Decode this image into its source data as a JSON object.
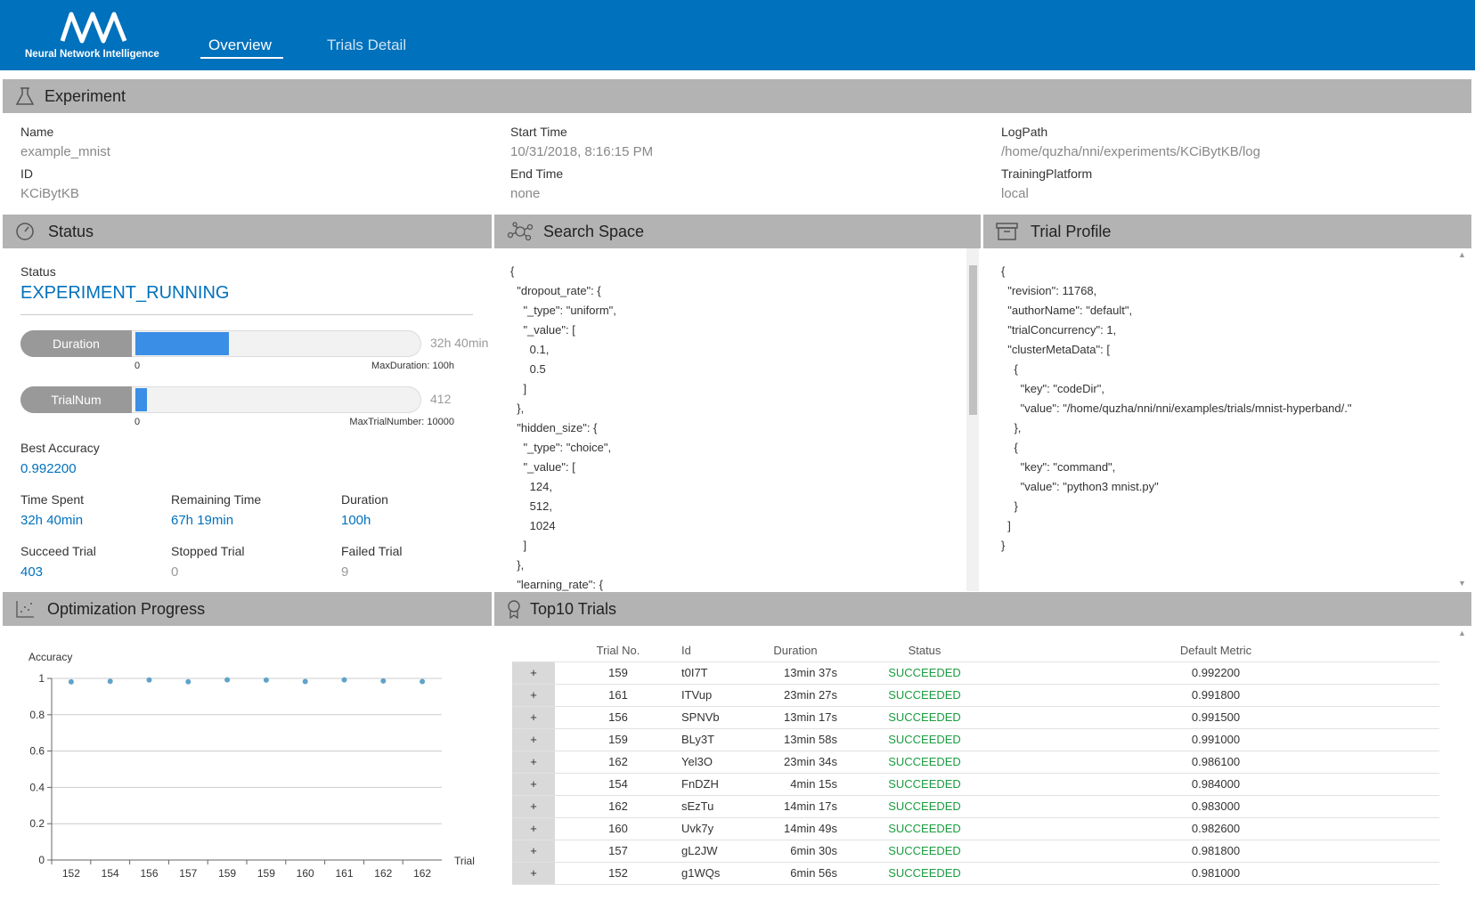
{
  "header": {
    "logo_text": "Neural Network Intelligence",
    "nav": [
      "Overview",
      "Trials Detail"
    ]
  },
  "experiment": {
    "title": "Experiment",
    "columns": [
      [
        {
          "label": "Name",
          "value": "example_mnist"
        },
        {
          "label": "ID",
          "value": "KCiBytKB"
        }
      ],
      [
        {
          "label": "Start Time",
          "value": "10/31/2018, 8:16:15 PM"
        },
        {
          "label": "End Time",
          "value": "none"
        }
      ],
      [
        {
          "label": "LogPath",
          "value": "/home/quzha/nni/experiments/KCiBytKB/log"
        },
        {
          "label": "TrainingPlatform",
          "value": "local"
        }
      ]
    ]
  },
  "status": {
    "title": "Status",
    "status_label": "Status",
    "status_value": "EXPERIMENT_RUNNING",
    "progress": [
      {
        "label": "Duration",
        "value": 32.67,
        "value_label": "32h 40min",
        "min": 0,
        "max": 100,
        "max_label": "MaxDuration: 100h"
      },
      {
        "label": "TrialNum",
        "value": 412,
        "min": 0,
        "max": 10000,
        "max_label": "MaxTrialNumber: 10000"
      }
    ],
    "best_accuracy": {
      "label": "Best Accuracy",
      "value": "0.992200"
    },
    "stats": [
      {
        "label": "Time Spent",
        "value": "32h 40min"
      },
      {
        "label": "Remaining Time",
        "value": "67h 19min"
      },
      {
        "label": "Duration",
        "value": "100h"
      },
      {
        "label": "Succeed Trial",
        "value": 403
      },
      {
        "label": "Stopped Trial",
        "value": 0
      },
      {
        "label": "Failed Trial",
        "value": 9
      }
    ]
  },
  "search_space": {
    "title": "Search Space",
    "lines": [
      "{",
      "  \"dropout_rate\": {",
      "    \"_type\": \"uniform\",",
      "    \"_value\": [",
      "      0.1,",
      "      0.5",
      "    ]",
      "  },",
      "  \"hidden_size\": {",
      "    \"_type\": \"choice\",",
      "    \"_value\": [",
      "      124,",
      "      512,",
      "      1024",
      "    ]",
      "  },",
      "  \"learning_rate\": {"
    ]
  },
  "trial_profile": {
    "title": "Trial Profile",
    "lines": [
      "{",
      "  \"revision\": 11768,",
      "  \"authorName\": \"default\",",
      "  \"trialConcurrency\": 1,",
      "  \"clusterMetaData\": [",
      "    {",
      "      \"key\": \"codeDir\",",
      "      \"value\": \"/home/quzha/nni/nni/examples/trials/mnist-hyperband/.\"",
      "    },",
      "    {",
      "      \"key\": \"command\",",
      "      \"value\": \"python3 mnist.py\"",
      "    }",
      "  ]",
      "}"
    ]
  },
  "optimization": {
    "title": "Optimization Progress",
    "chart": {
      "type": "scatter",
      "y_label": "Accuracy",
      "x_label": "Trial",
      "categories": [
        152,
        154,
        156,
        157,
        159,
        159,
        160,
        161,
        162,
        162
      ],
      "values": [
        0.981,
        0.984,
        0.9915,
        0.9818,
        0.9922,
        0.991,
        0.9826,
        0.9918,
        0.9861,
        0.983
      ],
      "color": "#5fa3c9",
      "ylim": [
        0,
        1
      ],
      "yticks": [
        0,
        0.2,
        0.4,
        0.6,
        0.8,
        1
      ],
      "grid": true
    }
  },
  "top_trials": {
    "title": "Top10 Trials",
    "columns": [
      "Trial No.",
      "Id",
      "Duration",
      "Status",
      "Default Metric"
    ],
    "expand_label": "+",
    "rows": [
      [
        159,
        "t0I7T",
        "13min 37s",
        "SUCCEEDED",
        "0.992200"
      ],
      [
        161,
        "ITVup",
        "23min 27s",
        "SUCCEEDED",
        "0.991800"
      ],
      [
        156,
        "SPNVb",
        "13min 17s",
        "SUCCEEDED",
        "0.991500"
      ],
      [
        159,
        "BLy3T",
        "13min 58s",
        "SUCCEEDED",
        "0.991000"
      ],
      [
        162,
        "Yel3O",
        "23min 34s",
        "SUCCEEDED",
        "0.986100"
      ],
      [
        154,
        "FnDZH",
        "4min 15s",
        "SUCCEEDED",
        "0.984000"
      ],
      [
        162,
        "sEzTu",
        "14min 17s",
        "SUCCEEDED",
        "0.983000"
      ],
      [
        160,
        "Uvk7y",
        "14min 49s",
        "SUCCEEDED",
        "0.982600"
      ],
      [
        157,
        "gL2JW",
        "6min 30s",
        "SUCCEEDED",
        "0.981800"
      ],
      [
        152,
        "g1WQs",
        "6min 56s",
        "SUCCEEDED",
        "0.981000"
      ]
    ]
  }
}
